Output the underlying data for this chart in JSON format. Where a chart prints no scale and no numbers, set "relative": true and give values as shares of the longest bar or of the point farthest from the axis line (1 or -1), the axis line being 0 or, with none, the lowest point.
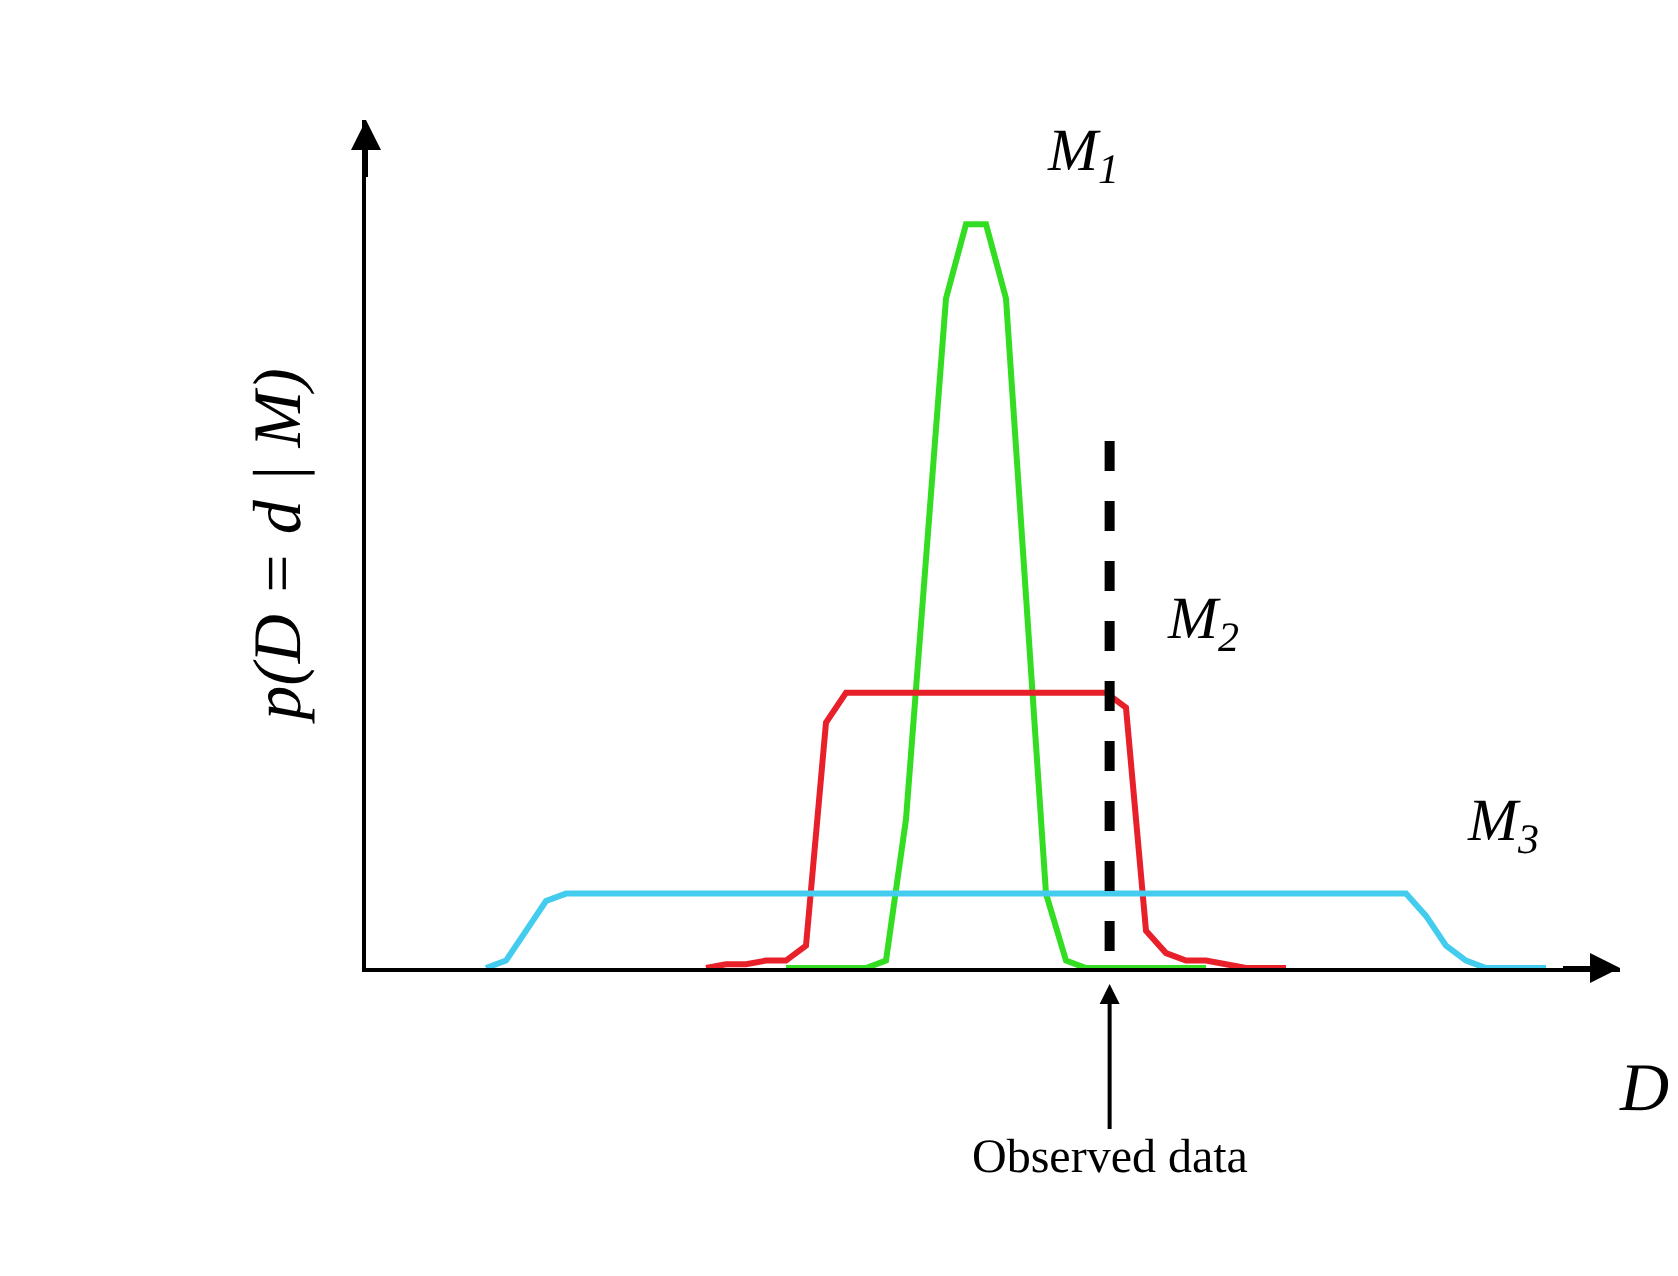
{
  "chart_data": {
    "type": "line",
    "relative": true,
    "xlabel": "D",
    "ylabel": "p(D = d | M)",
    "legend": false,
    "marker": "none",
    "categories": [
      null,
      null,
      null,
      null,
      null,
      null,
      null,
      null,
      null,
      null,
      null,
      null,
      null,
      null,
      null,
      null,
      null,
      null,
      null,
      null,
      null,
      null,
      null,
      null,
      null,
      null,
      null,
      null,
      null,
      null,
      null,
      null,
      null,
      null,
      null,
      null,
      null,
      null,
      null,
      null,
      null,
      null,
      null,
      null,
      null,
      null,
      null,
      null,
      null,
      null,
      null,
      null,
      null,
      null,
      null,
      null,
      null,
      null,
      null,
      null,
      null,
      null,
      null
    ],
    "series": [
      {
        "name": "M$_{1}$",
        "color": "#33dd22",
        "values": [
          null,
          null,
          null,
          null,
          null,
          null,
          null,
          null,
          null,
          null,
          null,
          null,
          null,
          null,
          null,
          null,
          null,
          null,
          null,
          null,
          null,
          0,
          0,
          0,
          0,
          0,
          0.01,
          0.2,
          0.55,
          0.9,
          1,
          1,
          0.9,
          0.5,
          0.1,
          0.01,
          0,
          0,
          0,
          0,
          0,
          0,
          0,
          null,
          null,
          null,
          null,
          null,
          null,
          null,
          null,
          null,
          null,
          null,
          null,
          null,
          null,
          null,
          null,
          null,
          null,
          null,
          null
        ]
      },
      {
        "name": "M$_{2}$",
        "color": "#e8202a",
        "values": [
          null,
          null,
          null,
          null,
          null,
          null,
          null,
          null,
          null,
          null,
          null,
          null,
          null,
          null,
          null,
          null,
          null,
          0,
          0.005,
          0.005,
          0.01,
          0.01,
          0.03,
          0.33,
          0.37,
          0.37,
          0.37,
          0.37,
          0.37,
          0.37,
          0.37,
          0.37,
          0.37,
          0.37,
          0.37,
          0.37,
          0.37,
          0.37,
          0.35,
          0.05,
          0.02,
          0.01,
          0.01,
          0.005,
          0,
          0,
          0,
          null,
          null,
          null,
          null,
          null,
          null,
          null,
          null,
          null,
          null,
          null,
          null,
          null,
          null,
          null,
          null
        ]
      },
      {
        "name": "M$_{3}$",
        "color": "#44ccee",
        "values": [
          null,
          null,
          null,
          null,
          null,
          null,
          0,
          0.01,
          0.05,
          0.09,
          0.1,
          0.1,
          0.1,
          0.1,
          0.1,
          0.1,
          0.1,
          0.1,
          0.1,
          0.1,
          0.1,
          0.1,
          0.1,
          0.1,
          0.1,
          0.1,
          0.1,
          0.1,
          0.1,
          0.1,
          0.1,
          0.1,
          0.1,
          0.1,
          0.1,
          0.1,
          0.1,
          0.1,
          0.1,
          0.1,
          0.1,
          0.1,
          0.1,
          0.1,
          0.1,
          0.1,
          0.1,
          0.1,
          0.1,
          0.1,
          0.1,
          0.1,
          0.1,
          0.07,
          0.03,
          0.01,
          0,
          0,
          0,
          0,
          null,
          null,
          null
        ]
      }
    ],
    "annotations": [
      "Observed data"
    ]
  }
}
